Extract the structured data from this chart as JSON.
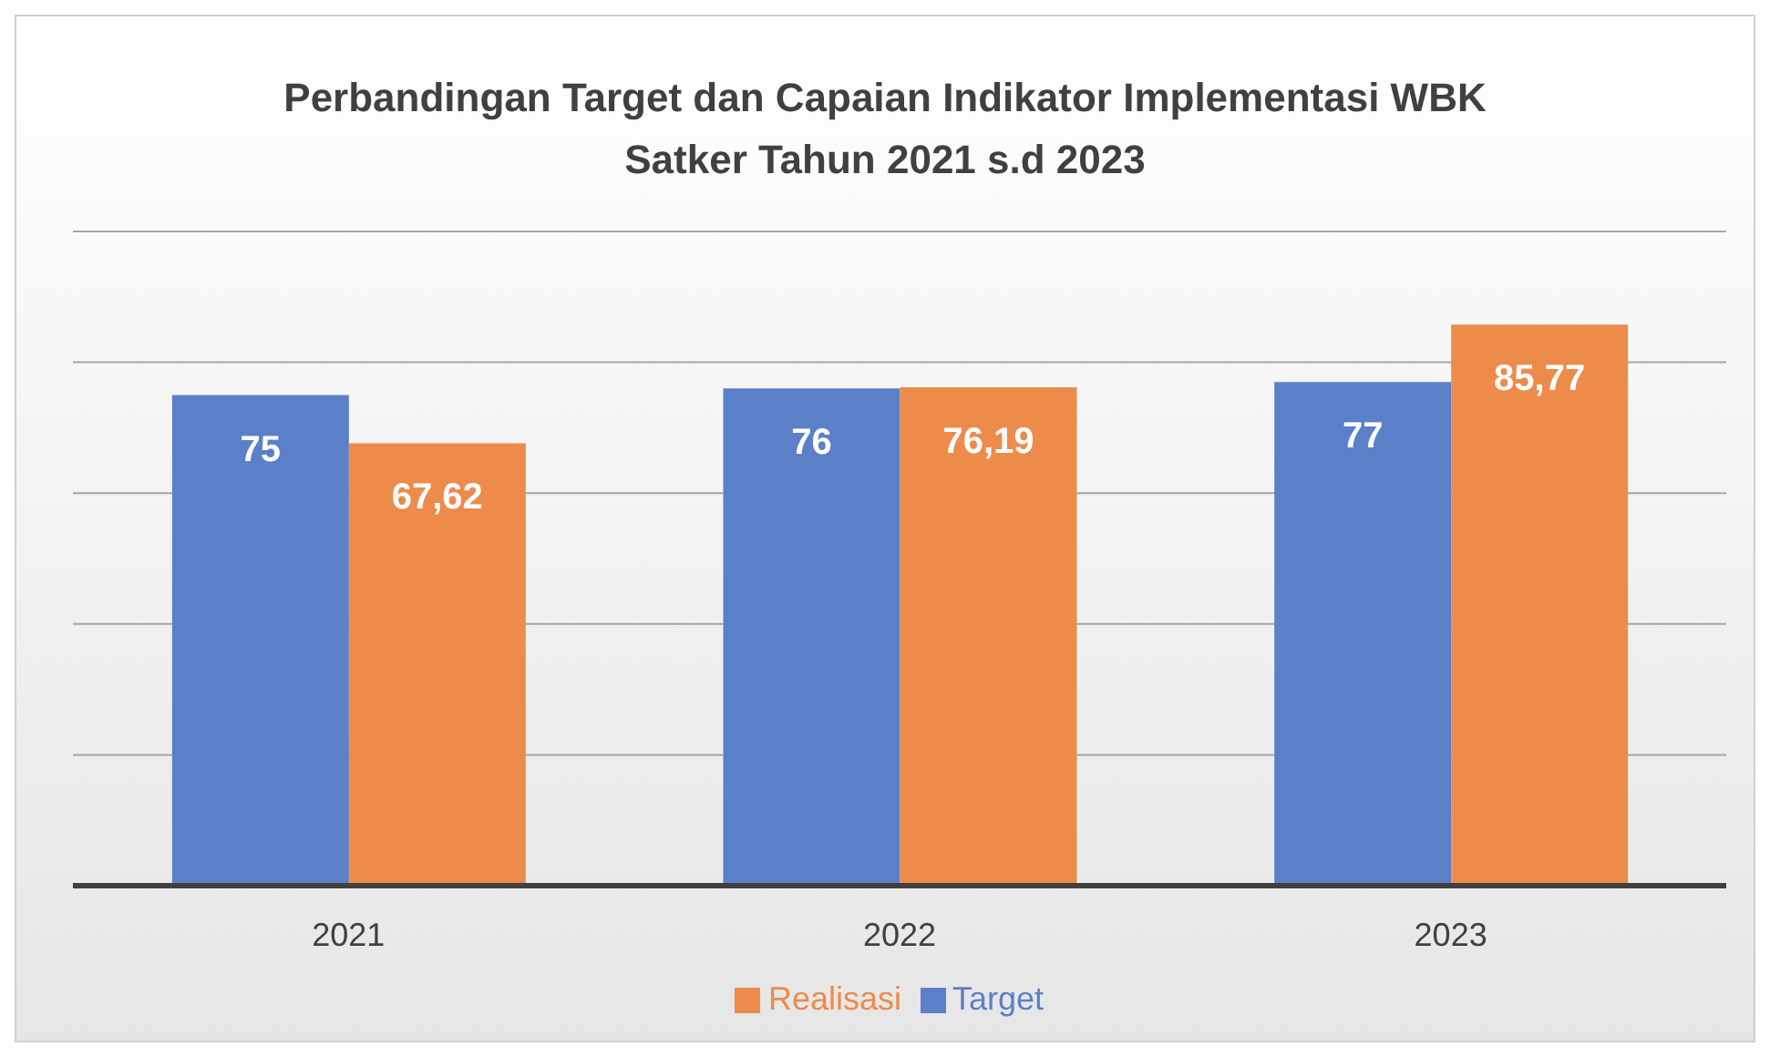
{
  "chart_data": {
    "type": "bar",
    "title": "Perbandingan Target dan Capaian Indikator Implementasi WBK Satker Tahun 2021 s.d 2023",
    "categories": [
      "2021",
      "2022",
      "2023"
    ],
    "series": [
      {
        "name": "Target",
        "color": "#5b80c8",
        "values": [
          75,
          76,
          77
        ],
        "value_labels": [
          "75",
          "76",
          "77"
        ]
      },
      {
        "name": "Realisasi",
        "color": "#ed8b4b",
        "values": [
          67.62,
          76.19,
          85.77
        ],
        "value_labels": [
          "67,62",
          "76,19",
          "85,77"
        ]
      }
    ],
    "tick_labels": "x",
    "grid": "y",
    "legend": "bottom"
  }
}
